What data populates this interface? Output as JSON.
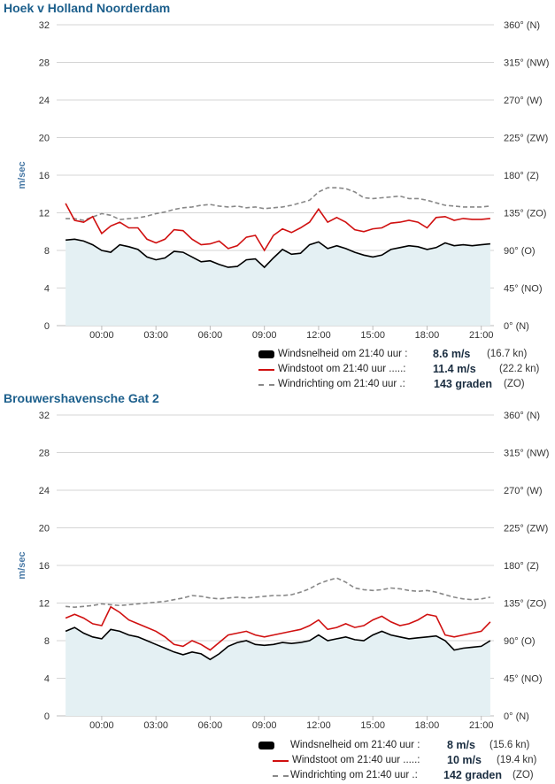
{
  "colors": {
    "speed": "#000000",
    "gust": "#d01010",
    "direction": "#888888",
    "fill": "#e4f0f3",
    "title": "#1c5f8c"
  },
  "stations": [
    {
      "title": "Hoek v Holland Noorderdam",
      "legend": {
        "speed": {
          "label": "Windsnelheid om 21:40 uur :",
          "value": "8.6 m/s",
          "extra": "(16.7 kn)"
        },
        "gust": {
          "label": "Windstoot om 21:40 uur .....:",
          "value": "11.4 m/s",
          "extra": "(22.2 kn)"
        },
        "direction": {
          "label": "Windrichting om 21:40 uur .:",
          "value": "143 graden",
          "extra": "(ZO)"
        }
      },
      "chart_data": {
        "type": "line",
        "ylabel": "m/sec",
        "ylim": [
          0,
          32
        ],
        "y_ticks": [
          "0",
          "4",
          "8",
          "12",
          "16",
          "20",
          "24",
          "28",
          "32"
        ],
        "y2lim": [
          0,
          360
        ],
        "y2_ticks": [
          "0° (N)",
          "45° (NO)",
          "90° (O)",
          "135° (ZO)",
          "180° (Z)",
          "225° (ZW)",
          "270° (W)",
          "315° (NW)",
          "360° (N)"
        ],
        "x_ticks": [
          "00:00",
          "03:00",
          "06:00",
          "09:00",
          "12:00",
          "15:00",
          "18:00",
          "21:00"
        ],
        "x_unit": "hours relative to 00:00",
        "x_range": [
          -2.2,
          21.7
        ],
        "x_tick_values": [
          0,
          3,
          6,
          9,
          12,
          15,
          18,
          21
        ],
        "grid": true,
        "series": [
          {
            "name": "Windsnelheid",
            "axis": "left",
            "fill": true,
            "x": [
              -2,
              -1.5,
              -1,
              -0.5,
              0,
              0.5,
              1,
              1.5,
              2,
              2.5,
              3,
              3.5,
              4,
              4.5,
              5,
              5.5,
              6,
              6.5,
              7,
              7.5,
              8,
              8.5,
              9,
              9.5,
              10,
              10.5,
              11,
              11.5,
              12,
              12.5,
              13,
              13.5,
              14,
              14.5,
              15,
              15.5,
              16,
              16.5,
              17,
              17.5,
              18,
              18.5,
              19,
              19.5,
              20,
              20.5,
              21,
              21.5
            ],
            "values": [
              9.1,
              9.2,
              9.0,
              8.6,
              8.0,
              7.8,
              8.6,
              8.4,
              8.1,
              7.3,
              7.0,
              7.2,
              7.9,
              7.8,
              7.3,
              6.8,
              6.9,
              6.5,
              6.2,
              6.3,
              7.0,
              7.1,
              6.2,
              7.2,
              8.1,
              7.6,
              7.7,
              8.6,
              8.9,
              8.2,
              8.5,
              8.2,
              7.8,
              7.5,
              7.3,
              7.5,
              8.1,
              8.3,
              8.5,
              8.4,
              8.1,
              8.3,
              8.8,
              8.5,
              8.6,
              8.5,
              8.6,
              8.7
            ]
          },
          {
            "name": "Windstoot",
            "axis": "left",
            "x": [
              -2,
              -1.5,
              -1,
              -0.5,
              0,
              0.5,
              1,
              1.5,
              2,
              2.5,
              3,
              3.5,
              4,
              4.5,
              5,
              5.5,
              6,
              6.5,
              7,
              7.5,
              8,
              8.5,
              9,
              9.5,
              10,
              10.5,
              11,
              11.5,
              12,
              12.5,
              13,
              13.5,
              14,
              14.5,
              15,
              15.5,
              16,
              16.5,
              17,
              17.5,
              18,
              18.5,
              19,
              19.5,
              20,
              20.5,
              21,
              21.5
            ],
            "values": [
              13.0,
              11.2,
              11.0,
              11.6,
              9.8,
              10.6,
              11.0,
              10.4,
              10.4,
              9.2,
              8.8,
              9.2,
              10.2,
              10.1,
              9.2,
              8.6,
              8.7,
              9.0,
              8.2,
              8.5,
              9.4,
              9.6,
              8.0,
              9.6,
              10.3,
              9.9,
              10.4,
              11.0,
              12.4,
              11.0,
              11.5,
              11.0,
              10.2,
              10.0,
              10.3,
              10.4,
              10.9,
              11.0,
              11.2,
              11.0,
              10.4,
              11.5,
              11.6,
              11.2,
              11.4,
              11.3,
              11.3,
              11.4
            ]
          },
          {
            "name": "Windrichting",
            "axis": "right",
            "x": [
              -2,
              -1.5,
              -1,
              -0.5,
              0,
              0.5,
              1,
              1.5,
              2,
              2.5,
              3,
              3.5,
              4,
              4.5,
              5,
              5.5,
              6,
              6.5,
              7,
              7.5,
              8,
              8.5,
              9,
              9.5,
              10,
              10.5,
              11,
              11.5,
              12,
              12.5,
              13,
              13.5,
              14,
              14.5,
              15,
              15.5,
              16,
              16.5,
              17,
              17.5,
              18,
              18.5,
              19,
              19.5,
              20,
              20.5,
              21,
              21.5
            ],
            "values": [
              128,
              128,
              126,
              130,
              134,
              132,
              127,
              128,
              129,
              131,
              134,
              136,
              139,
              141,
              142,
              144,
              145,
              143,
              142,
              143,
              141,
              142,
              140,
              141,
              142,
              144,
              147,
              150,
              160,
              165,
              165,
              164,
              160,
              153,
              152,
              153,
              154,
              155,
              152,
              152,
              150,
              147,
              144,
              143,
              142,
              142,
              142,
              143
            ]
          }
        ]
      }
    },
    {
      "title": "Brouwershavensche Gat 2",
      "legend": {
        "speed": {
          "label": "Windsnelheid om 21:40 uur :",
          "value": "8 m/s",
          "extra": "(15.6 kn)"
        },
        "gust": {
          "label": "Windstoot om 21:40 uur .....:",
          "value": "10 m/s",
          "extra": "(19.4 kn)"
        },
        "direction": {
          "label": "Windrichting om 21:40 uur .:",
          "value": "142 graden",
          "extra": "(ZO)"
        }
      },
      "chart_data": {
        "type": "line",
        "ylabel": "m/sec",
        "ylim": [
          0,
          32
        ],
        "y_ticks": [
          "0",
          "4",
          "8",
          "12",
          "16",
          "20",
          "24",
          "28",
          "32"
        ],
        "y2lim": [
          0,
          360
        ],
        "y2_ticks": [
          "0° (N)",
          "45° (NO)",
          "90° (O)",
          "135° (ZO)",
          "180° (Z)",
          "225° (ZW)",
          "270° (W)",
          "315° (NW)",
          "360° (N)"
        ],
        "x_ticks": [
          "00:00",
          "03:00",
          "06:00",
          "09:00",
          "12:00",
          "15:00",
          "18:00",
          "21:00"
        ],
        "x_unit": "hours relative to 00:00",
        "x_range": [
          -2.2,
          21.7
        ],
        "x_tick_values": [
          0,
          3,
          6,
          9,
          12,
          15,
          18,
          21
        ],
        "grid": true,
        "series": [
          {
            "name": "Windsnelheid",
            "axis": "left",
            "fill": true,
            "x": [
              -2,
              -1.5,
              -1,
              -0.5,
              0,
              0.5,
              1,
              1.5,
              2,
              2.5,
              3,
              3.5,
              4,
              4.5,
              5,
              5.5,
              6,
              6.5,
              7,
              7.5,
              8,
              8.5,
              9,
              9.5,
              10,
              10.5,
              11,
              11.5,
              12,
              12.5,
              13,
              13.5,
              14,
              14.5,
              15,
              15.5,
              16,
              16.5,
              17,
              17.5,
              18,
              18.5,
              19,
              19.5,
              20,
              20.5,
              21,
              21.5
            ],
            "values": [
              9.0,
              9.4,
              8.8,
              8.4,
              8.2,
              9.2,
              9.0,
              8.6,
              8.4,
              8.0,
              7.6,
              7.2,
              6.8,
              6.5,
              6.8,
              6.6,
              6.0,
              6.6,
              7.4,
              7.8,
              8.0,
              7.6,
              7.5,
              7.6,
              7.8,
              7.7,
              7.8,
              8.0,
              8.6,
              8.0,
              8.2,
              8.4,
              8.1,
              8.0,
              8.6,
              9.0,
              8.6,
              8.4,
              8.2,
              8.3,
              8.4,
              8.5,
              8.0,
              7.0,
              7.2,
              7.3,
              7.4,
              8.0
            ]
          },
          {
            "name": "Windstoot",
            "axis": "left",
            "x": [
              -2,
              -1.5,
              -1,
              -0.5,
              0,
              0.5,
              1,
              1.5,
              2,
              2.5,
              3,
              3.5,
              4,
              4.5,
              5,
              5.5,
              6,
              6.5,
              7,
              7.5,
              8,
              8.5,
              9,
              9.5,
              10,
              10.5,
              11,
              11.5,
              12,
              12.5,
              13,
              13.5,
              14,
              14.5,
              15,
              15.5,
              16,
              16.5,
              17,
              17.5,
              18,
              18.5,
              19,
              19.5,
              20,
              20.5,
              21,
              21.5
            ],
            "values": [
              10.4,
              10.8,
              10.4,
              9.8,
              9.6,
              11.6,
              11.0,
              10.2,
              9.8,
              9.4,
              9.0,
              8.4,
              7.6,
              7.4,
              8.0,
              7.6,
              7.0,
              7.8,
              8.6,
              8.8,
              9.0,
              8.6,
              8.4,
              8.6,
              8.8,
              9.0,
              9.2,
              9.6,
              10.2,
              9.2,
              9.4,
              9.8,
              9.4,
              9.6,
              10.2,
              10.6,
              10.0,
              9.6,
              9.8,
              10.2,
              10.8,
              10.6,
              8.6,
              8.4,
              8.6,
              8.8,
              9.0,
              10.0
            ]
          },
          {
            "name": "Windrichting",
            "axis": "right",
            "x": [
              -2,
              -1.5,
              -1,
              -0.5,
              0,
              0.5,
              1,
              1.5,
              2,
              2.5,
              3,
              3.5,
              4,
              4.5,
              5,
              5.5,
              6,
              6.5,
              7,
              7.5,
              8,
              8.5,
              9,
              9.5,
              10,
              10.5,
              11,
              11.5,
              12,
              12.5,
              13,
              13.5,
              14,
              14.5,
              15,
              15.5,
              16,
              16.5,
              17,
              17.5,
              18,
              18.5,
              19,
              19.5,
              20,
              20.5,
              21,
              21.5
            ],
            "values": [
              131,
              130,
              131,
              132,
              134,
              133,
              132,
              133,
              134,
              135,
              136,
              137,
              139,
              141,
              144,
              143,
              141,
              140,
              141,
              142,
              141,
              142,
              143,
              144,
              144,
              145,
              148,
              152,
              158,
              162,
              165,
              160,
              153,
              151,
              150,
              151,
              153,
              152,
              150,
              149,
              150,
              148,
              145,
              142,
              140,
              139,
              140,
              142
            ]
          }
        ]
      }
    }
  ]
}
